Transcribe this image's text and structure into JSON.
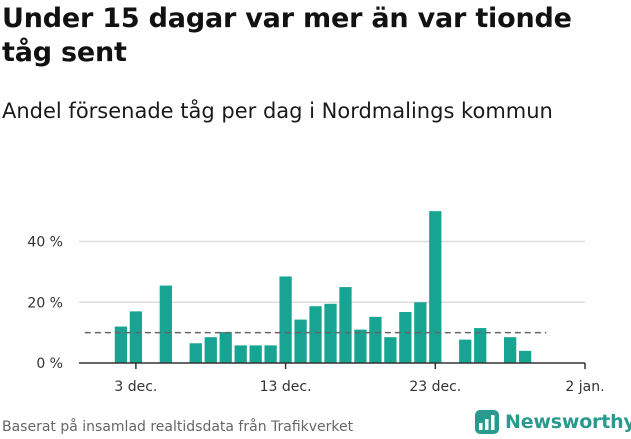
{
  "header": {
    "title": "Under 15 dagar var mer än var tionde tåg sent",
    "subtitle": "Andel försenade tåg per dag i Nordmalings kommun"
  },
  "footer": {
    "source": "Baserat på insamlad realtidsdata från Trafikverket",
    "brand": "Newsworthy"
  },
  "colors": {
    "bar": "#17a493",
    "grid": "#dcdcdc",
    "axis": "#333333",
    "reference_line": "#666666",
    "brand": "#2a9a8e"
  },
  "chart_data": {
    "type": "bar",
    "title": "Under 15 dagar var mer än var tionde tåg sent",
    "subtitle": "Andel försenade tåg per dag i Nordmalings kommun",
    "x_unit": "day",
    "x_domain": [
      "2019-11-29",
      "2020-01-02"
    ],
    "xlim": [
      -0.8,
      33
    ],
    "x_ticks": [
      {
        "day": 3,
        "label": "3 dec."
      },
      {
        "day": 13,
        "label": "13 dec."
      },
      {
        "day": 23,
        "label": "23 dec."
      },
      {
        "day": 33,
        "label": "2 jan."
      }
    ],
    "y_ticks": [
      {
        "value": 0,
        "label": "0 %"
      },
      {
        "value": 20,
        "label": "20 %"
      },
      {
        "value": 40,
        "label": "40 %"
      }
    ],
    "ylim": [
      0,
      55
    ],
    "ylabel": "",
    "grid": true,
    "reference_line": {
      "value": 10,
      "style": "dashed",
      "from_day": 0,
      "to_day": 30
    },
    "bar_width_days": 0.82,
    "points": [
      {
        "day": 2,
        "date": "2 dec.",
        "value": 12
      },
      {
        "day": 3,
        "date": "3 dec.",
        "value": 17
      },
      {
        "day": 5,
        "date": "5 dec.",
        "value": 25.5
      },
      {
        "day": 7,
        "date": "7 dec.",
        "value": 6.5
      },
      {
        "day": 8,
        "date": "8 dec.",
        "value": 8.5
      },
      {
        "day": 9,
        "date": "9 dec.",
        "value": 10.2
      },
      {
        "day": 10,
        "date": "10 dec.",
        "value": 5.8
      },
      {
        "day": 11,
        "date": "11 dec.",
        "value": 5.8
      },
      {
        "day": 12,
        "date": "12 dec.",
        "value": 5.8
      },
      {
        "day": 13,
        "date": "13 dec.",
        "value": 28.5
      },
      {
        "day": 14,
        "date": "14 dec.",
        "value": 14.3
      },
      {
        "day": 15,
        "date": "15 dec.",
        "value": 18.7
      },
      {
        "day": 16,
        "date": "16 dec.",
        "value": 19.5
      },
      {
        "day": 17,
        "date": "17 dec.",
        "value": 25
      },
      {
        "day": 18,
        "date": "18 dec.",
        "value": 11
      },
      {
        "day": 19,
        "date": "19 dec.",
        "value": 15.2
      },
      {
        "day": 20,
        "date": "20 dec.",
        "value": 8.5
      },
      {
        "day": 21,
        "date": "21 dec.",
        "value": 16.8
      },
      {
        "day": 22,
        "date": "22 dec.",
        "value": 20
      },
      {
        "day": 23,
        "date": "23 dec.",
        "value": 50
      },
      {
        "day": 25,
        "date": "25 dec.",
        "value": 7.7
      },
      {
        "day": 26,
        "date": "26 dec.",
        "value": 11.5
      },
      {
        "day": 28,
        "date": "28 dec.",
        "value": 8.5
      },
      {
        "day": 29,
        "date": "29 dec.",
        "value": 4
      }
    ]
  }
}
